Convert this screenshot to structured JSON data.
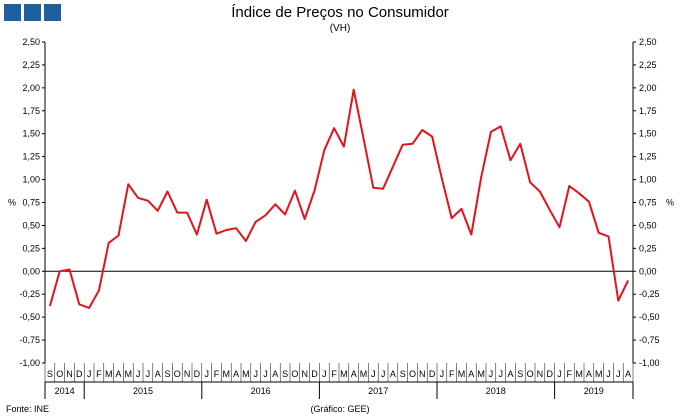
{
  "title": "Índice de Preços no Consumidor",
  "subtitle": "(VH)",
  "footer": {
    "source": "Fonte: INE",
    "credit": "(Gráfico: GEE)"
  },
  "colors": {
    "series": "#e3121b",
    "logo": "#1f5fa0"
  },
  "chart_data": {
    "type": "line",
    "title": "Índice de Preços no Consumidor",
    "subtitle": "(VH)",
    "ylabel_left": "%",
    "ylabel_right": "%",
    "ylim": [
      -1.0,
      2.5
    ],
    "ytick_step": 0.25,
    "yticks": [
      "-1,00",
      "-0,75",
      "-0,50",
      "-0,25",
      "0,00",
      "0,25",
      "0,50",
      "0,75",
      "1,00",
      "1,25",
      "1,50",
      "1,75",
      "2,00",
      "2,25",
      "2,50"
    ],
    "grid": false,
    "legend": "none",
    "month_labels": [
      "S",
      "O",
      "N",
      "D",
      "J",
      "F",
      "M",
      "A",
      "M",
      "J",
      "J",
      "A",
      "S",
      "O",
      "N",
      "D",
      "J",
      "F",
      "M",
      "A",
      "M",
      "J",
      "J",
      "A",
      "S",
      "O",
      "N",
      "D",
      "J",
      "F",
      "M",
      "A",
      "M",
      "J",
      "J",
      "A",
      "S",
      "O",
      "N",
      "D",
      "J",
      "F",
      "M",
      "A",
      "M",
      "J",
      "J",
      "A",
      "S",
      "O",
      "N",
      "D",
      "J",
      "F",
      "M",
      "A",
      "M",
      "J",
      "J",
      "A"
    ],
    "years": [
      {
        "label": "2014",
        "start": 0,
        "count": 4
      },
      {
        "label": "2015",
        "start": 4,
        "count": 12
      },
      {
        "label": "2016",
        "start": 16,
        "count": 12
      },
      {
        "label": "2017",
        "start": 28,
        "count": 12
      },
      {
        "label": "2018",
        "start": 40,
        "count": 12
      },
      {
        "label": "2019",
        "start": 52,
        "count": 8
      }
    ],
    "series": [
      {
        "values": [
          -0.38,
          0.0,
          0.02,
          -0.36,
          -0.4,
          -0.21,
          0.31,
          0.39,
          0.95,
          0.8,
          0.77,
          0.66,
          0.87,
          0.64,
          0.64,
          0.4,
          0.78,
          0.41,
          0.45,
          0.47,
          0.33,
          0.54,
          0.61,
          0.73,
          0.62,
          0.88,
          0.57,
          0.88,
          1.32,
          1.56,
          1.36,
          1.98,
          1.45,
          0.91,
          0.9,
          1.14,
          1.38,
          1.39,
          1.54,
          1.47,
          1.01,
          0.58,
          0.68,
          0.4,
          1.02,
          1.52,
          1.58,
          1.21,
          1.39,
          0.97,
          0.87,
          0.67,
          0.48,
          0.93,
          0.85,
          0.76,
          0.42,
          0.38,
          -0.32,
          -0.1
        ]
      }
    ]
  }
}
